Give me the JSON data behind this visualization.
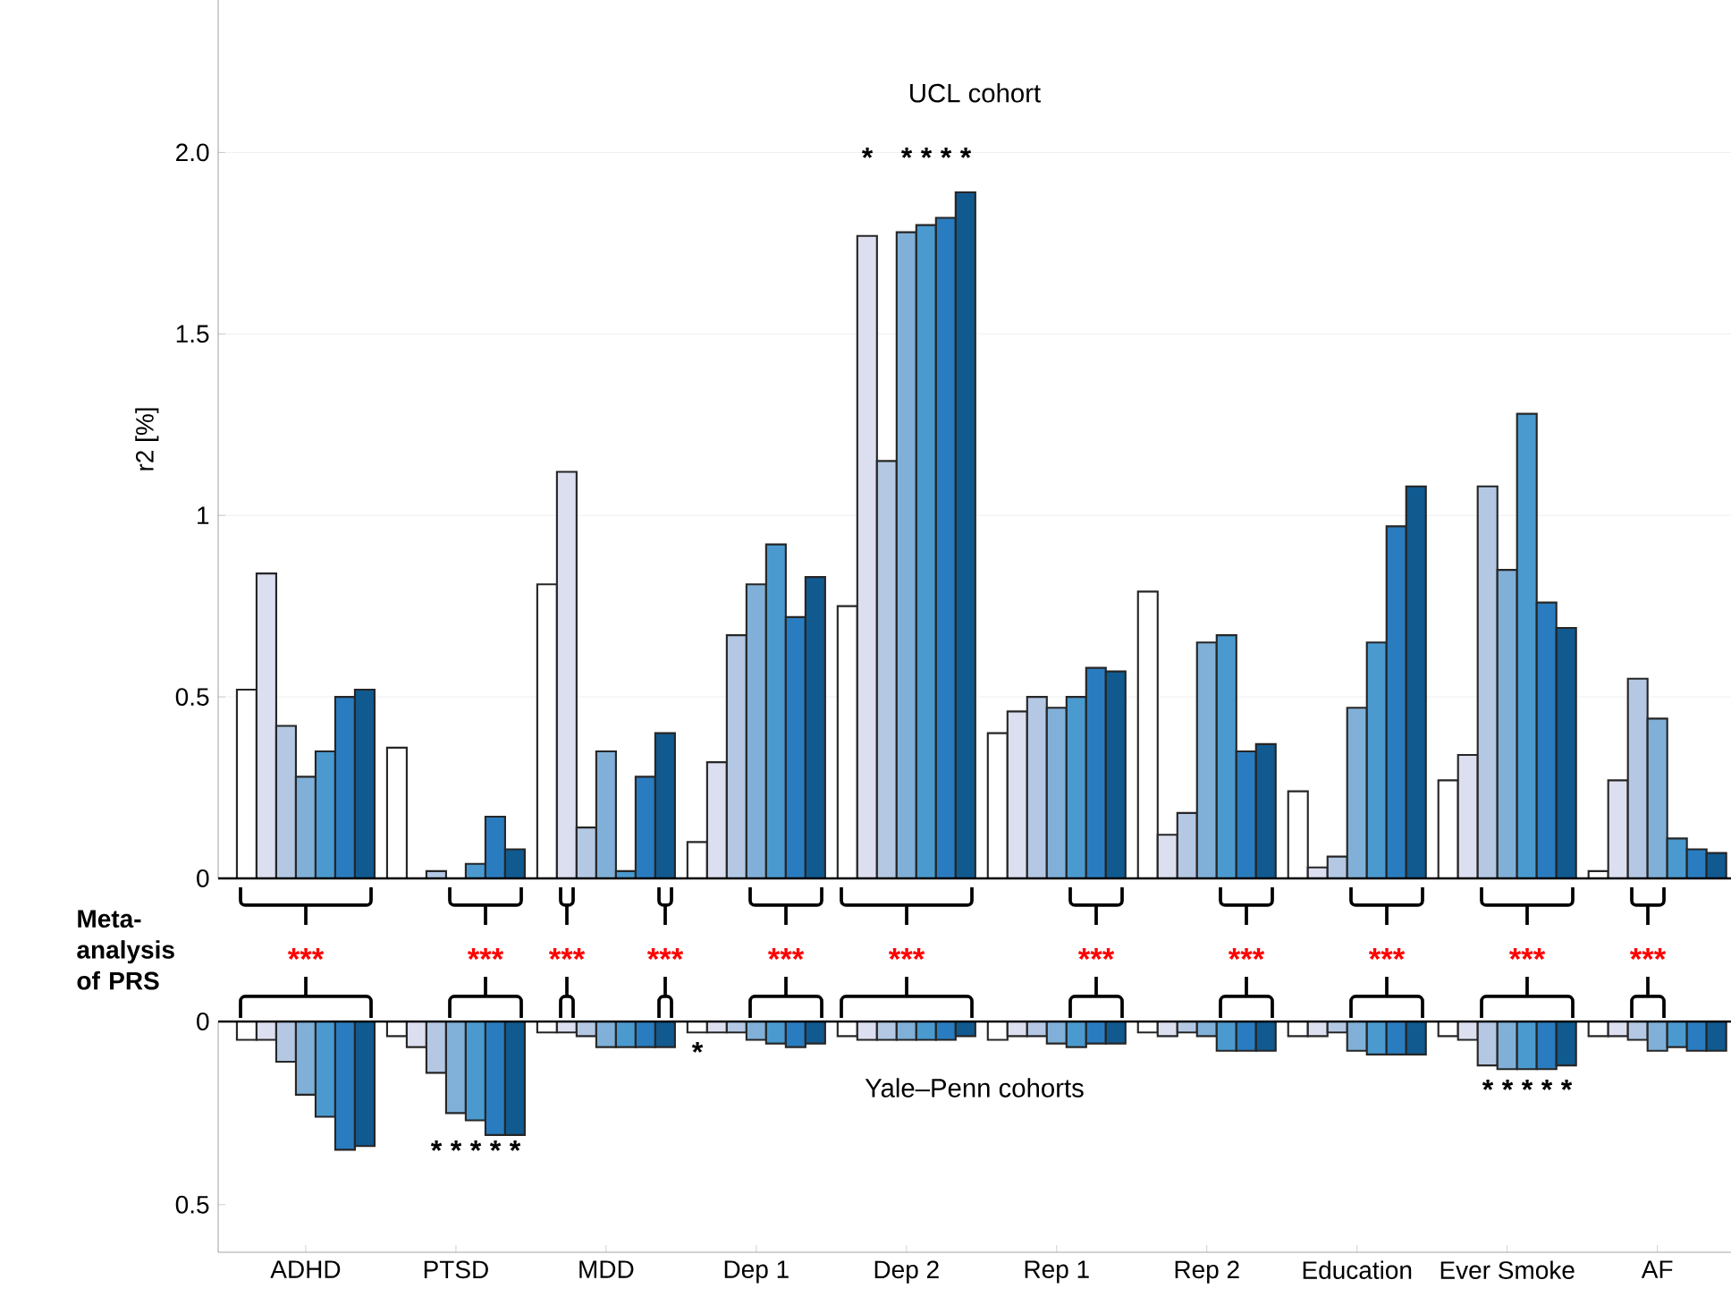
{
  "chart_data": [
    {
      "type": "bar",
      "title": "UCL cohort",
      "ylabel": "r2 [%]",
      "categories": [
        null,
        null,
        null,
        null,
        null,
        null,
        null,
        null,
        null,
        null
      ],
      "series": [
        {
          "color": "#ffffff",
          "values": [
            0.52,
            0.36,
            0.81,
            0.1,
            0.75,
            0.4,
            0.79,
            0.24,
            0.27,
            0.02
          ]
        },
        {
          "color": "#dcdff0",
          "values": [
            0.84,
            null,
            1.12,
            0.32,
            1.77,
            0.46,
            0.12,
            0.03,
            0.34,
            0.27
          ]
        },
        {
          "color": "#b4c8e4",
          "values": [
            0.42,
            0.02,
            0.14,
            0.67,
            1.15,
            0.5,
            0.18,
            0.06,
            1.08,
            0.55
          ]
        },
        {
          "color": "#80b0d8",
          "values": [
            0.28,
            null,
            0.35,
            0.81,
            1.78,
            0.47,
            0.65,
            0.47,
            0.85,
            0.44
          ]
        },
        {
          "color": "#4a9ad0",
          "values": [
            0.35,
            0.04,
            0.02,
            0.92,
            1.8,
            0.5,
            0.67,
            0.65,
            1.28,
            0.11
          ]
        },
        {
          "color": "#2a7cc0",
          "values": [
            0.5,
            0.17,
            0.28,
            0.72,
            1.82,
            0.58,
            0.35,
            0.97,
            0.76,
            0.08
          ]
        },
        {
          "color": "#105a90",
          "values": [
            0.52,
            0.08,
            0.4,
            0.83,
            1.89,
            0.57,
            0.37,
            1.08,
            0.69,
            0.07
          ]
        }
      ],
      "ylim": [
        0,
        2.42
      ],
      "yticks": [
        0,
        0.5,
        1,
        1.5,
        {
          "value": 2,
          "label": "2.0"
        }
      ],
      "grid": "y",
      "tick_labels": "y",
      "annotations": [
        "*",
        "*",
        "*",
        "*",
        "*",
        "Meta-analysis of PRS",
        "***",
        "***",
        "***",
        "***",
        "***",
        "***",
        "***",
        "***",
        "***",
        "***",
        "***"
      ]
    },
    {
      "type": "bar",
      "title": "Yale–Penn cohorts",
      "categories": [
        "ADHD",
        "PTSD",
        "MDD",
        "Dep 1",
        "Dep 2",
        "Rep 1",
        "Rep 2",
        "Education",
        "Ever Smoke",
        "AF"
      ],
      "series": [
        {
          "color": "#ffffff",
          "values": [
            0.05,
            0.04,
            0.03,
            0.03,
            0.04,
            0.05,
            0.03,
            0.04,
            0.04,
            0.04
          ]
        },
        {
          "color": "#dcdff0",
          "values": [
            0.05,
            0.07,
            0.03,
            0.03,
            0.05,
            0.04,
            0.04,
            0.04,
            0.05,
            0.04
          ]
        },
        {
          "color": "#b4c8e4",
          "values": [
            0.11,
            0.14,
            0.04,
            0.03,
            0.05,
            0.04,
            0.03,
            0.03,
            0.12,
            0.05
          ]
        },
        {
          "color": "#80b0d8",
          "values": [
            0.2,
            0.25,
            0.07,
            0.05,
            0.05,
            0.06,
            0.04,
            0.08,
            0.13,
            0.08
          ]
        },
        {
          "color": "#4a9ad0",
          "values": [
            0.26,
            0.27,
            0.07,
            0.06,
            0.05,
            0.07,
            0.08,
            0.09,
            0.13,
            0.07
          ]
        },
        {
          "color": "#2a7cc0",
          "values": [
            0.35,
            0.31,
            0.07,
            0.07,
            0.05,
            0.06,
            0.08,
            0.09,
            0.13,
            0.08
          ]
        },
        {
          "color": "#105a90",
          "values": [
            0.34,
            0.31,
            0.07,
            0.06,
            0.04,
            0.06,
            0.08,
            0.09,
            0.12,
            0.08
          ]
        }
      ],
      "ylim": [
        0.63,
        0
      ],
      "yticks": [
        0,
        0.5
      ],
      "annotations": [
        "*",
        "*",
        "*",
        "*",
        "*",
        "*",
        "*",
        "*",
        "*",
        "*",
        "*"
      ]
    }
  ]
}
